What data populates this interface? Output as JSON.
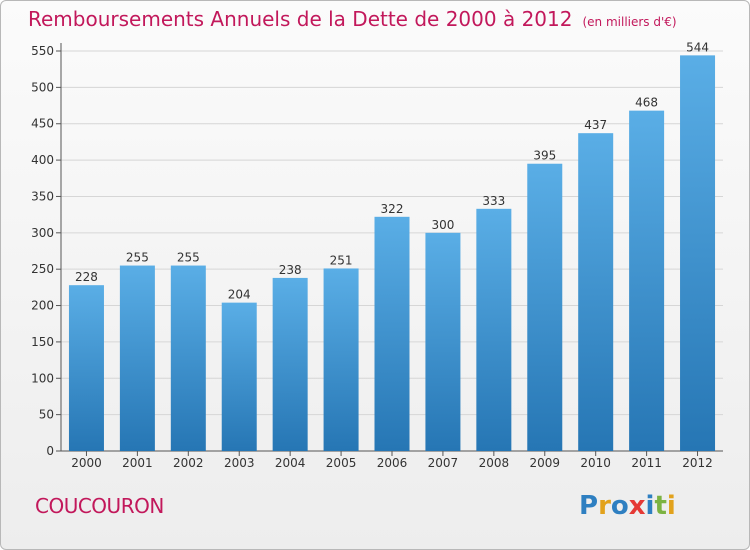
{
  "header": {
    "title": "Remboursements Annuels de la Dette de 2000 à 2012",
    "subtitle": "(en milliers d'€)"
  },
  "footer": {
    "town": "COUCOURON",
    "logo": "Proxiti"
  },
  "colors": {
    "title": "#c2185b",
    "bar_top": "#5aaee6",
    "bar_bottom": "#2676b4",
    "logo_letters": [
      "#2e7fc1",
      "#e2a21c",
      "#2e7fc1",
      "#e53935",
      "#2e7fc1",
      "#7cb342",
      "#e2a21c"
    ]
  },
  "chart_data": {
    "type": "bar",
    "title": "Remboursements Annuels de la Dette de 2000 à 2012",
    "subtitle": "(en milliers d'€)",
    "categories": [
      "2000",
      "2001",
      "2002",
      "2003",
      "2004",
      "2005",
      "2006",
      "2007",
      "2008",
      "2009",
      "2010",
      "2011",
      "2012"
    ],
    "values": [
      228,
      255,
      255,
      204,
      238,
      251,
      322,
      300,
      333,
      395,
      437,
      468,
      544
    ],
    "ylim": [
      0,
      550
    ],
    "yticks": [
      0,
      50,
      100,
      150,
      200,
      250,
      300,
      350,
      400,
      450,
      500,
      550
    ],
    "grid": true,
    "data_labels": true
  }
}
